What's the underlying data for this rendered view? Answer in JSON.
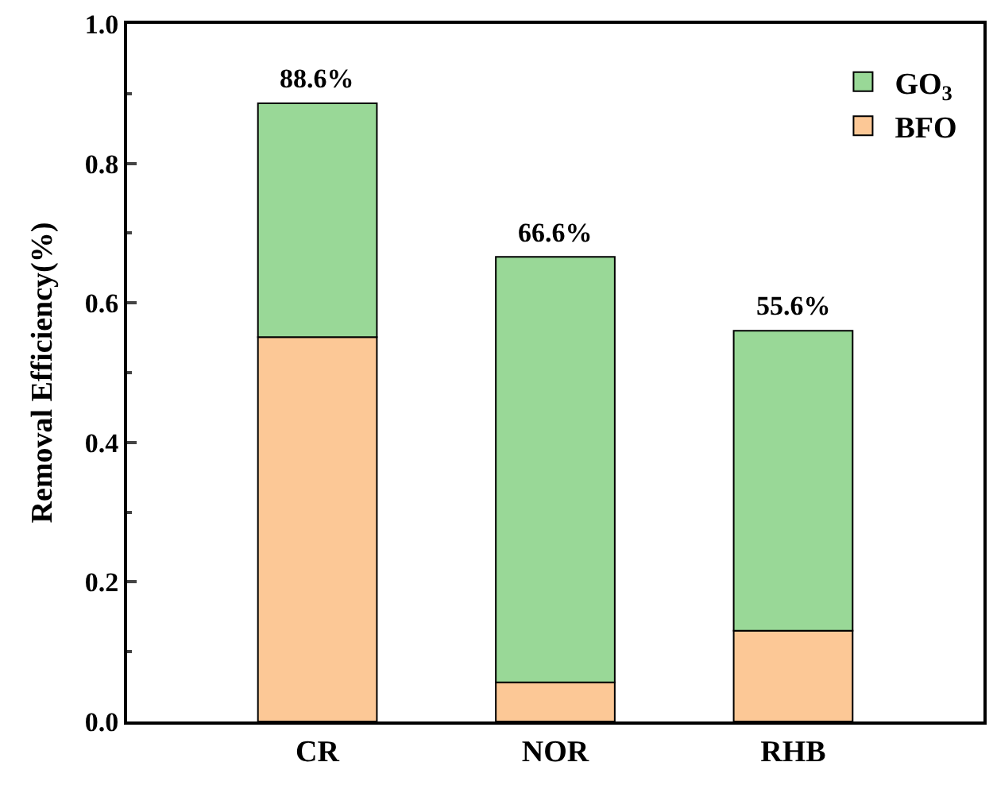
{
  "chart_data": {
    "type": "bar",
    "stacked": true,
    "categories": [
      "CR",
      "NOR",
      "RHB"
    ],
    "ylabel": "Removal Efficiency(%)",
    "series": [
      {
        "name": "BFO",
        "color": "#fcc896",
        "values": [
          0.551,
          0.056,
          0.13
        ]
      },
      {
        "name": "GO$_{3}$",
        "color": "#99d897",
        "values": [
          0.335,
          0.61,
          0.43
        ]
      }
    ],
    "annotations": [
      {
        "text": "88.6%",
        "x": "CR",
        "y": 0.886
      },
      {
        "text": "66.6%",
        "x": "NOR",
        "y": 0.666
      },
      {
        "text": "55.6%",
        "x": "RHB",
        "y": 0.56
      }
    ],
    "ylim": [
      0,
      1.0
    ],
    "yticks": [
      {
        "value": 0,
        "label": "0.0"
      },
      0.2,
      0.4,
      0.6,
      0.8,
      {
        "value": 1,
        "label": "1.0"
      }
    ],
    "legend": "top right"
  }
}
